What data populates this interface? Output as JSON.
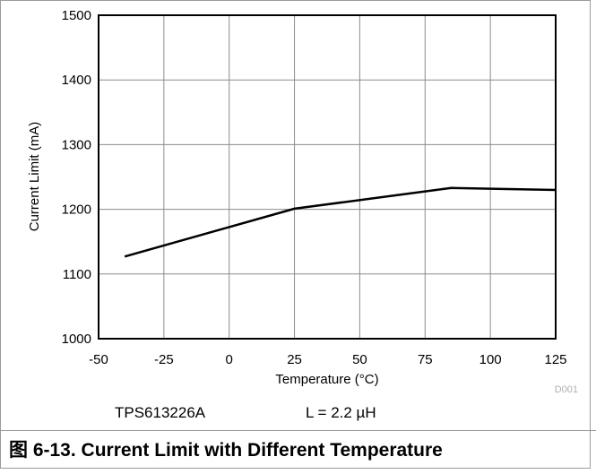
{
  "chart_data": {
    "type": "line",
    "x": [
      -40,
      25,
      85,
      125
    ],
    "series": [
      {
        "values": [
          1127,
          1201,
          1233,
          1230
        ]
      }
    ],
    "xlabel": "Temperature (°C)",
    "ylabel": "Current Limit (mA)",
    "xlim": [
      -50,
      125
    ],
    "ylim": [
      1000,
      1500
    ],
    "xticks": [
      -50,
      -25,
      0,
      25,
      50,
      75,
      100,
      125
    ],
    "yticks": [
      1000,
      1100,
      1200,
      1300,
      1400,
      1500
    ],
    "grid": true,
    "line_color": "#000000",
    "annotations": {
      "code": "D001",
      "device": "TPS613226A",
      "inductor": "L = 2.2 µH"
    }
  },
  "caption": "图 6-13. Current Limit with Different Temperature"
}
